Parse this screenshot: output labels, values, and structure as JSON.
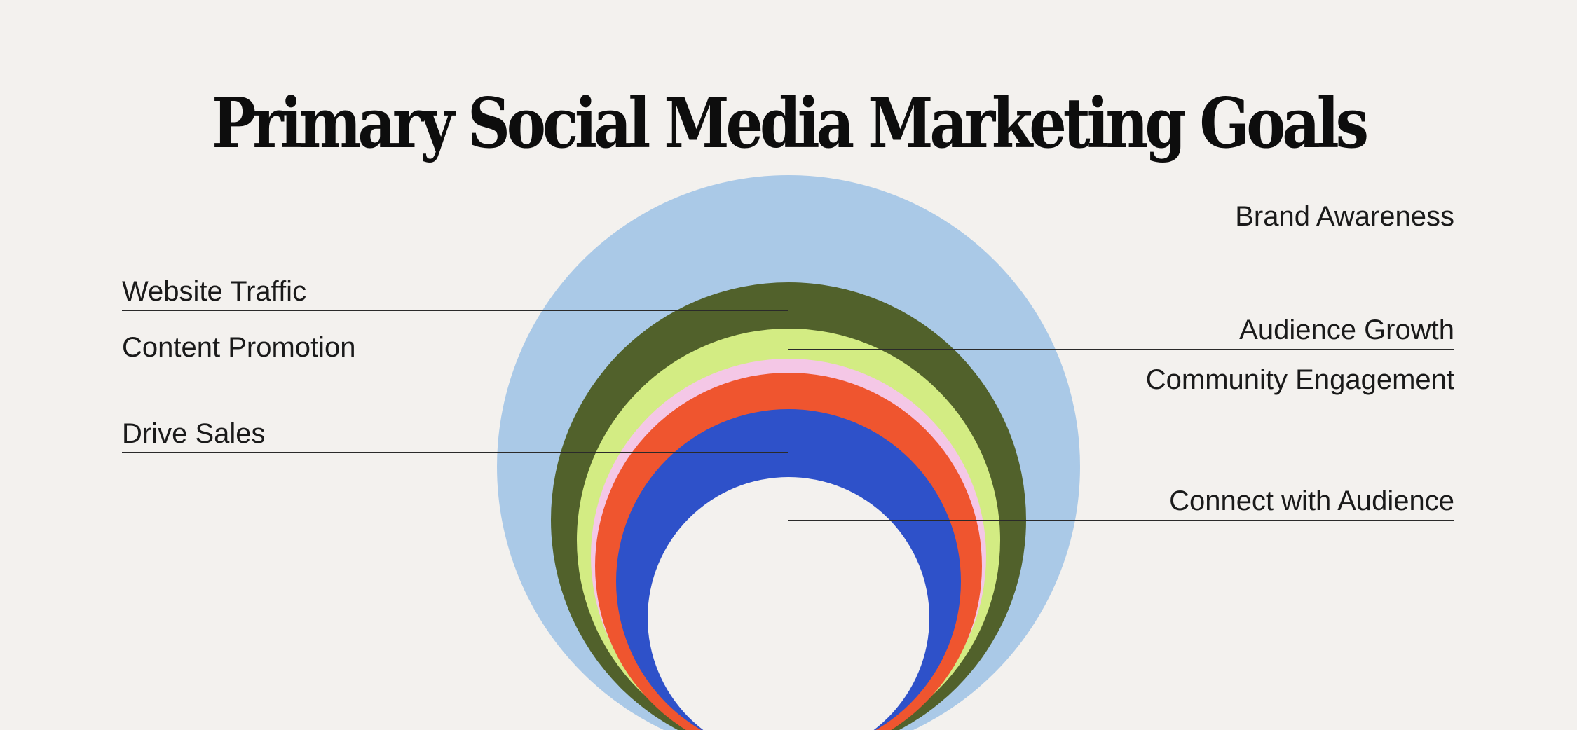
{
  "title": "Primary Social Media Marketing Goals",
  "goals": [
    {
      "label": "Brand Awareness",
      "color": "#aac9e7"
    },
    {
      "label": "Website Traffic",
      "color": "#51612b"
    },
    {
      "label": "Audience Growth",
      "color": "#d3ec83"
    },
    {
      "label": "Content Promotion",
      "color": "#f4c7e6"
    },
    {
      "label": "Community Engagement",
      "color": "#ef552f"
    },
    {
      "label": "Drive Sales",
      "color": "#2e51c9"
    },
    {
      "label": "Connect with Audience",
      "color": "#f3f1ee"
    }
  ]
}
